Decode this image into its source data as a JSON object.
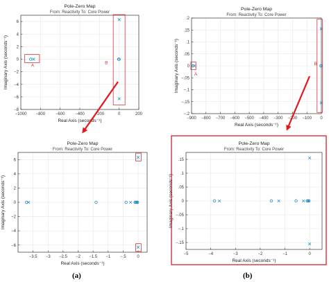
{
  "figure": {
    "caption_a": "(a)",
    "caption_b": "(b)",
    "arrow_color": "#e8141a",
    "highlight_color": "#d9303a",
    "marker_color": "#2a8fbd",
    "grid_color": "#e6e6e6"
  },
  "chart_data": [
    {
      "id": "a-top",
      "type": "scatter",
      "title": "Pole-Zero Map",
      "subtitle": "From: Reactivity  To: Core Power",
      "xlabel": "Real Axis (seconds⁻¹)",
      "ylabel": "Imaginary Axis (seconds⁻¹)",
      "xlim": [
        -1000,
        200
      ],
      "ylim": [
        -8,
        7
      ],
      "xticks": [
        -1000,
        -800,
        -600,
        -400,
        -200,
        0,
        200
      ],
      "yticks": [
        -8,
        -6,
        -4,
        -2,
        0,
        2,
        4,
        6
      ],
      "grid": true,
      "poles": [
        [
          -870,
          0
        ],
        [
          0,
          6.3
        ],
        [
          0,
          -6.3
        ]
      ],
      "zeros": [
        [
          -900,
          0
        ],
        [
          -5,
          0
        ],
        [
          -3,
          0
        ],
        [
          -1,
          0
        ]
      ],
      "annotations": [
        {
          "text": "A",
          "x": -880,
          "y": -1.2
        },
        {
          "text": "B",
          "x": -130,
          "y": -0.8
        }
      ],
      "highlights": [
        {
          "xlim": [
            -960,
            -810
          ],
          "ylim": [
            -0.55,
            0.75
          ]
        },
        {
          "xlim": [
            -60,
            60
          ],
          "ylim": [
            -7.3,
            7.1
          ]
        }
      ]
    },
    {
      "id": "a-bottom",
      "type": "scatter",
      "title": "Pole-Zero Map",
      "subtitle": "From: Reactivity  To: Core Power",
      "xlabel": "Real Axis (seconds⁻¹)",
      "ylabel": "Imaginary Axis (seconds⁻¹)",
      "xlim": [
        -4,
        0.3
      ],
      "ylim": [
        -7,
        7
      ],
      "xticks": [
        -3.5,
        -3,
        -2.5,
        -2,
        -1.5,
        -1,
        -0.5,
        0
      ],
      "yticks": [
        -6,
        -4,
        -2,
        0,
        2,
        4,
        6
      ],
      "grid": true,
      "poles": [
        [
          -3.65,
          0
        ],
        [
          -0.25,
          0
        ],
        [
          -0.06,
          0
        ],
        [
          -0.03,
          0
        ],
        [
          0,
          6.3
        ],
        [
          0,
          -6.3
        ]
      ],
      "zeros": [
        [
          -3.72,
          0
        ],
        [
          -1.4,
          0
        ],
        [
          -0.4,
          0
        ],
        [
          -0.1,
          0
        ],
        [
          -0.08,
          0
        ],
        [
          -0.05,
          0
        ],
        [
          -0.02,
          0
        ]
      ],
      "annotations": [],
      "highlights": [
        {
          "xlim": [
            -0.08,
            0.1
          ],
          "ylim": [
            5.8,
            6.9
          ]
        },
        {
          "xlim": [
            -0.08,
            0.1
          ],
          "ylim": [
            -6.9,
            -5.8
          ]
        }
      ]
    },
    {
      "id": "b-top",
      "type": "scatter",
      "title": "Pole-Zero Map",
      "subtitle": "From: Reactivity  To: Core Power",
      "xlabel": "Real Axis (seconds⁻¹)",
      "ylabel": "Imaginary Axis (seconds⁻¹)",
      "xlim": [
        -900,
        0
      ],
      "ylim": [
        -0.2,
        0.2
      ],
      "xticks": [
        -900,
        -800,
        -700,
        -600,
        -500,
        -400,
        -300,
        -200,
        -100,
        0
      ],
      "yticks": [
        -0.2,
        -0.15,
        -0.1,
        -0.05,
        0,
        0.05,
        0.1,
        0.15,
        0.2
      ],
      "grid": true,
      "poles": [
        [
          -880,
          0
        ],
        [
          -1,
          0.155
        ],
        [
          -1,
          -0.155
        ]
      ],
      "zeros": [
        [
          -890,
          0
        ],
        [
          -3,
          0
        ],
        [
          -1,
          0
        ]
      ],
      "annotations": [
        {
          "text": "A",
          "x": -870,
          "y": -0.04
        },
        {
          "text": "B",
          "x": -40,
          "y": 0.003
        }
      ],
      "highlights": [
        {
          "xlim": [
            -905,
            -870
          ],
          "ylim": [
            -0.016,
            0.016
          ]
        },
        {
          "xlim": [
            -30,
            8
          ],
          "ylim": [
            -0.195,
            0.195
          ]
        }
      ]
    },
    {
      "id": "b-bottom",
      "type": "scatter",
      "title": "Pole-Zero Map",
      "subtitle": "From: Reactivity  To: Core Power",
      "xlabel": "Real Axis (seconds⁻¹)",
      "ylabel": "Imaginary Axis (seconds⁻¹)",
      "xlim": [
        -5,
        0.5
      ],
      "ylim": [
        -0.175,
        0.175
      ],
      "xticks": [
        -5,
        -4,
        -3,
        -2,
        -1,
        0
      ],
      "yticks": [
        -0.15,
        -0.1,
        -0.05,
        0,
        0.05,
        0.1,
        0.15
      ],
      "grid": true,
      "poles": [
        [
          -3.65,
          0
        ],
        [
          -1.25,
          0
        ],
        [
          -0.25,
          0
        ],
        [
          -0.05,
          0
        ],
        [
          0,
          0.155
        ],
        [
          0,
          -0.155
        ]
      ],
      "zeros": [
        [
          -3.85,
          0
        ],
        [
          -1.55,
          0
        ],
        [
          -0.55,
          0
        ],
        [
          -0.1,
          0
        ],
        [
          -0.07,
          0
        ],
        [
          -0.03,
          0
        ]
      ],
      "annotations": [],
      "highlights": []
    }
  ]
}
